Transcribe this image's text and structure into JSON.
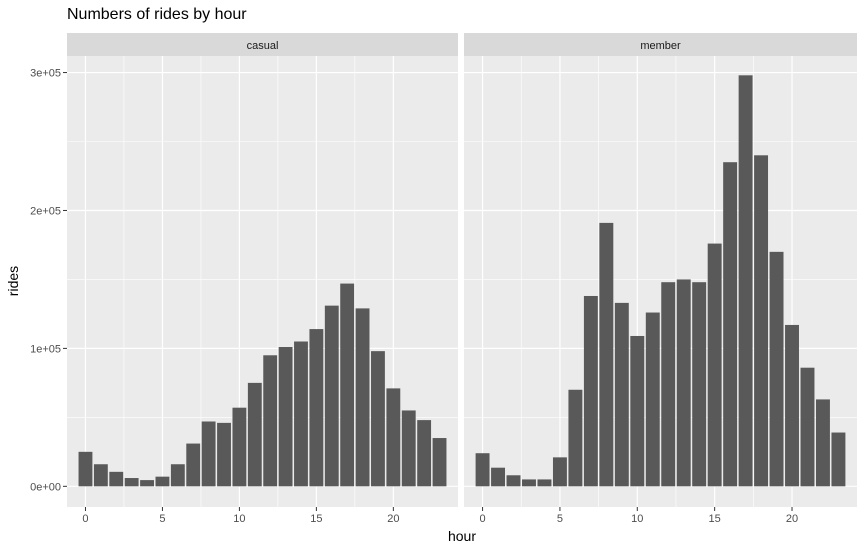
{
  "chart_data": {
    "type": "bar",
    "title": "Numbers of rides by hour",
    "xlabel": "hour",
    "ylabel": "rides",
    "facet_layout": "two panels side by side",
    "grid": true,
    "legend": "none",
    "xlim": [
      -1.2,
      24.2
    ],
    "ylim": [
      -15000,
      312000
    ],
    "x_ticks": [
      0,
      5,
      10,
      15,
      20
    ],
    "y_ticks": [
      0,
      100000,
      200000,
      300000
    ],
    "y_tick_labels": [
      "0e+00",
      "1e+05",
      "2e+05",
      "3e+05"
    ],
    "categories": [
      0,
      1,
      2,
      3,
      4,
      5,
      6,
      7,
      8,
      9,
      10,
      11,
      12,
      13,
      14,
      15,
      16,
      17,
      18,
      19,
      20,
      21,
      22,
      23
    ],
    "colors": {
      "bar": "#595959",
      "panel_bg": "#ebebeb",
      "grid": "#ffffff",
      "strip_bg": "#d9d9d9",
      "text": "#4d4d4d"
    },
    "panels": [
      {
        "strip": "casual",
        "values": [
          25000,
          16000,
          10500,
          6000,
          4500,
          7000,
          16000,
          31000,
          47000,
          46000,
          57000,
          75000,
          95000,
          101000,
          105000,
          114000,
          131000,
          147000,
          129000,
          98000,
          71000,
          55000,
          48000,
          35000
        ]
      },
      {
        "strip": "member",
        "values": [
          24000,
          13500,
          8000,
          5000,
          5000,
          21000,
          70000,
          138000,
          191000,
          133000,
          109000,
          126000,
          148000,
          150000,
          148000,
          176000,
          235000,
          298000,
          240000,
          170000,
          117000,
          86000,
          63000,
          39000
        ]
      }
    ]
  }
}
